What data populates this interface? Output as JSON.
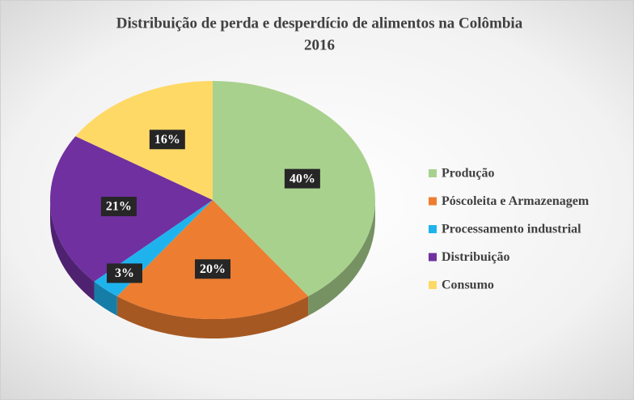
{
  "chart_data": {
    "type": "pie",
    "title": "Distribuição de perda e desperdício de alimentos na Colômbia",
    "subtitle": "2016",
    "categories": [
      "Produção",
      "Póscoleita e Armazenagem",
      "Processamento industrial",
      "Distribuição",
      "Consumo"
    ],
    "values": [
      40,
      20,
      3,
      21,
      16
    ],
    "value_labels": [
      "40%",
      "20%",
      "3%",
      "21%",
      "16%"
    ],
    "colors": [
      "#a9d18e",
      "#ed7d31",
      "#1fb3ee",
      "#7030a0",
      "#ffd966"
    ],
    "legend": "right"
  }
}
